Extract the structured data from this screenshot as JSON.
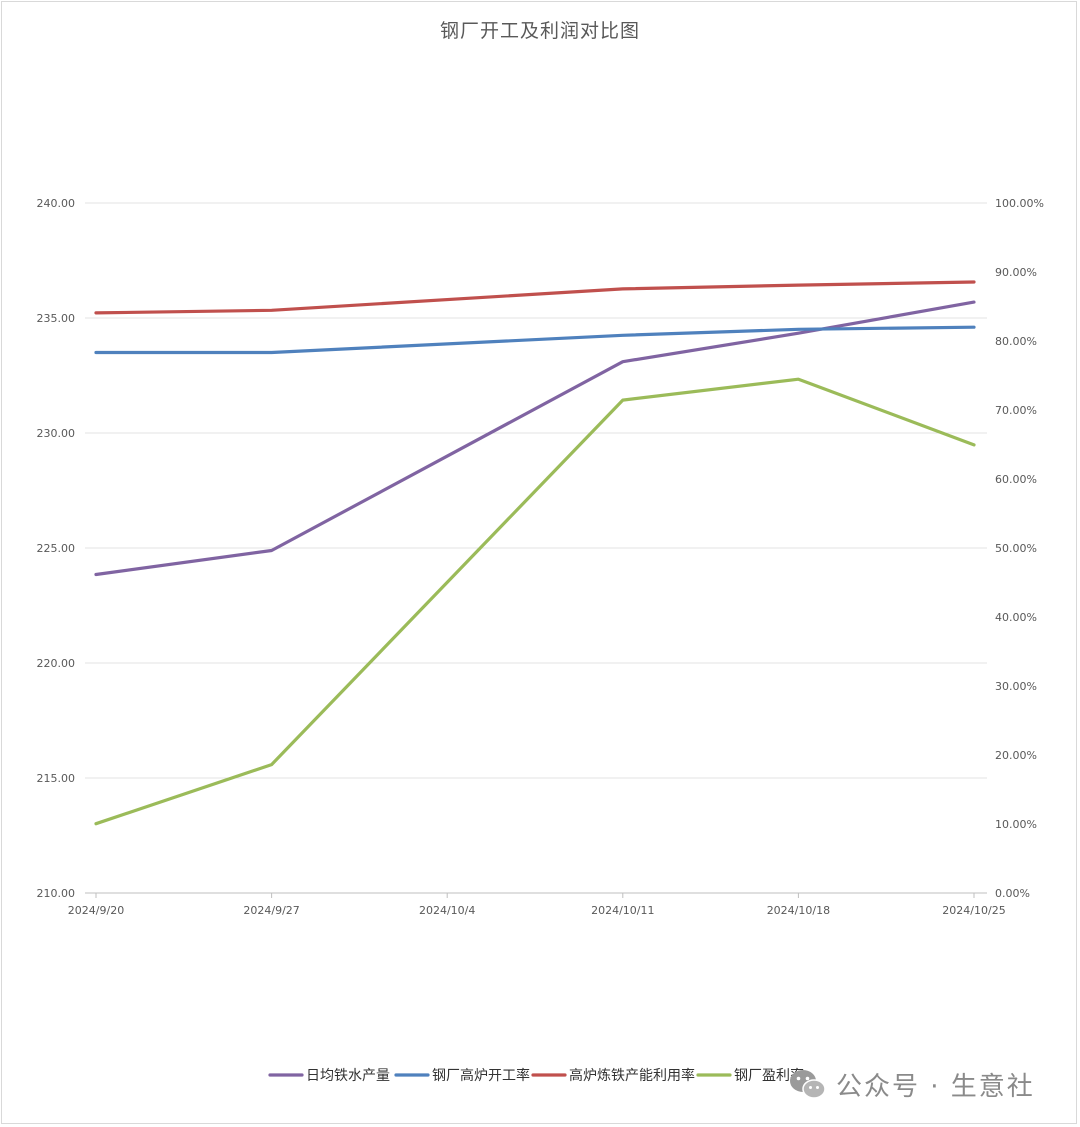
{
  "chart_data": {
    "type": "line",
    "title": "钢厂开工及利润对比图",
    "categories": [
      "2024/9/20",
      "2024/9/27",
      "2024/10/4",
      "2024/10/11",
      "2024/10/18",
      "2024/10/25"
    ],
    "x_labels": [
      "2024/9/20",
      "2024/9/27",
      "2024/10/4",
      "2024/10/11",
      "2024/10/18",
      "2024/10/25"
    ],
    "y_left": {
      "ylim": [
        210,
        240
      ],
      "ticks": [
        "210.00",
        "215.00",
        "220.00",
        "225.00",
        "230.00",
        "235.00",
        "240.00"
      ]
    },
    "y_right": {
      "ylim": [
        0,
        1
      ],
      "ticks": [
        "0.00%",
        "10.00%",
        "20.00%",
        "30.00%",
        "40.00%",
        "50.00%",
        "60.00%",
        "70.00%",
        "80.00%",
        "90.00%",
        "100.00%"
      ]
    },
    "grid": true,
    "legend_position": "bottom-right",
    "series": [
      {
        "name": "日均铁水产量",
        "axis": "left",
        "color": "#8064a2",
        "x": [
          "2024/9/20",
          "2024/9/27",
          "2024/10/11",
          "2024/10/18",
          "2024/10/25"
        ],
        "values": [
          223.85,
          224.89,
          233.1,
          234.34,
          235.69
        ]
      },
      {
        "name": "钢厂高炉开工率",
        "axis": "right",
        "color": "#4f81bd",
        "x": [
          "2024/9/20",
          "2024/9/27",
          "2024/10/11",
          "2024/10/18",
          "2024/10/25"
        ],
        "values": [
          0.7833,
          0.7833,
          0.8082,
          0.817,
          0.82
        ]
      },
      {
        "name": "高炉炼铁产能利用率",
        "axis": "right",
        "color": "#c0504d",
        "x": [
          "2024/9/20",
          "2024/9/27",
          "2024/10/11",
          "2024/10/18",
          "2024/10/25"
        ],
        "values": [
          0.8407,
          0.8445,
          0.8755,
          0.881,
          0.8855
        ]
      },
      {
        "name": "钢厂盈利率",
        "axis": "right",
        "color": "#9bbb59",
        "x": [
          "2024/9/20",
          "2024/9/27",
          "2024/10/11",
          "2024/10/18",
          "2024/10/25"
        ],
        "values": [
          0.1004,
          0.1861,
          0.7143,
          0.7446,
          0.6494
        ]
      }
    ]
  },
  "watermark": {
    "text": "公众号 · 生意社",
    "icon": "wechat-icon"
  }
}
